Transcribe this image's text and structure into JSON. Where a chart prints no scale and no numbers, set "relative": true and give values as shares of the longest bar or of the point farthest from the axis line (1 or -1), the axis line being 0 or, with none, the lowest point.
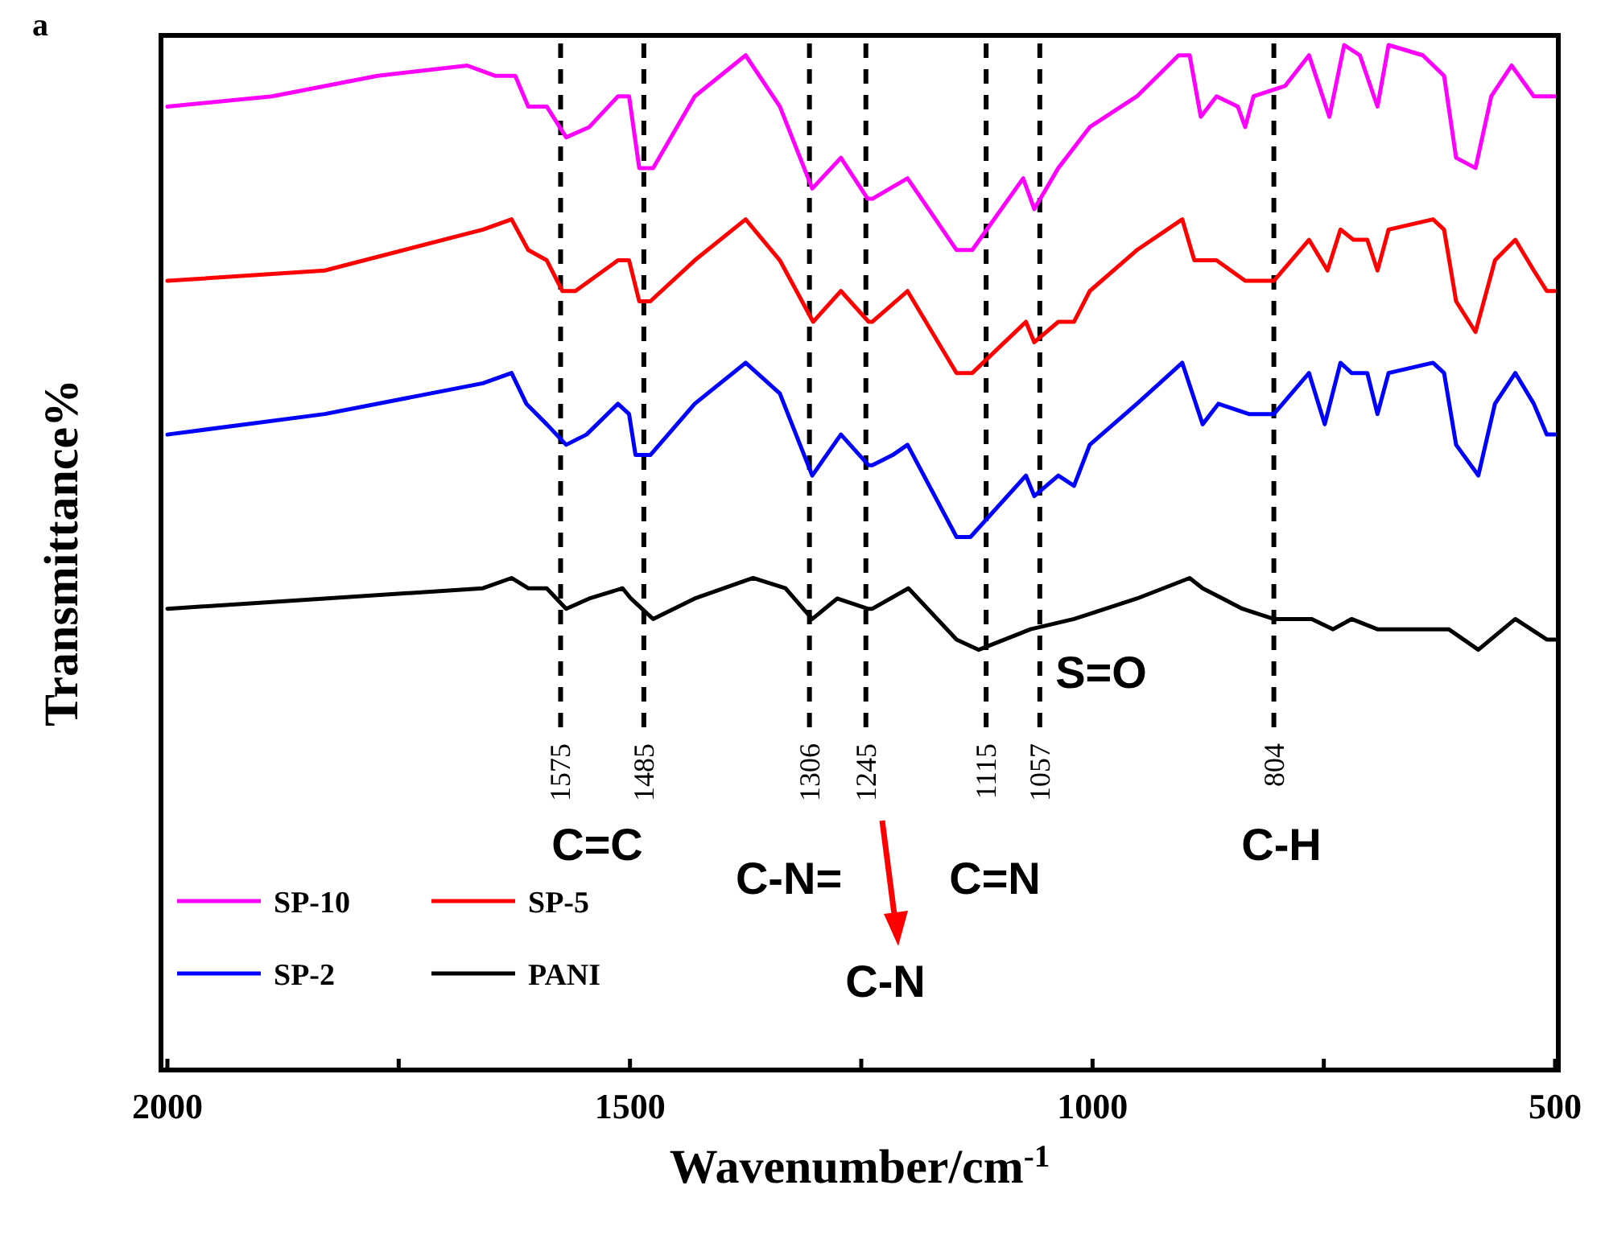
{
  "chart_data": {
    "type": "line",
    "title": "a",
    "xlabel": "Wavenumber/cm$^{-1}$",
    "ylabel": "Transmittance%",
    "relative": true,
    "xlim": [
      2000,
      500
    ],
    "xticks": [
      2000,
      {
        "value": 1750,
        "label": null
      },
      1500,
      {
        "value": 1250,
        "label": null
      },
      1000,
      {
        "value": 750,
        "label": null
      },
      500
    ],
    "legend": "bottom left",
    "grid": false,
    "line_style": "solid",
    "series": [
      {
        "name": "SP-10",
        "color": "#ff00ff",
        "x": [
          2000,
          1887,
          1773,
          1676,
          1646,
          1624,
          1610,
          1590,
          1569,
          1544,
          1513,
          1501,
          1490,
          1475,
          1430,
          1375,
          1338,
          1303,
          1272,
          1243,
          1238,
          1200,
          1147,
          1130,
          1075,
          1063,
          1037,
          1003,
          952,
          907,
          895,
          883,
          866,
          843,
          835,
          826,
          792,
          766,
          744,
          728,
          711,
          692,
          680,
          643,
          620,
          607,
          586,
          569,
          547,
          523,
          509,
          500
        ],
        "values": [
          0.94,
          0.95,
          0.97,
          0.98,
          0.97,
          0.97,
          0.94,
          0.94,
          0.91,
          0.92,
          0.95,
          0.95,
          0.88,
          0.88,
          0.95,
          0.99,
          0.94,
          0.86,
          0.89,
          0.85,
          0.85,
          0.87,
          0.8,
          0.8,
          0.87,
          0.84,
          0.88,
          0.92,
          0.95,
          0.99,
          0.99,
          0.93,
          0.95,
          0.94,
          0.92,
          0.95,
          0.96,
          0.99,
          0.93,
          1.0,
          0.99,
          0.94,
          1.0,
          0.99,
          0.97,
          0.89,
          0.88,
          0.95,
          0.98,
          0.95,
          0.95,
          0.95
        ]
      },
      {
        "name": "SP-5",
        "color": "#ff0000",
        "x": [
          2000,
          1830,
          1659,
          1628,
          1610,
          1590,
          1573,
          1559,
          1513,
          1501,
          1490,
          1478,
          1430,
          1375,
          1338,
          1302,
          1272,
          1242,
          1238,
          1200,
          1147,
          1130,
          1072,
          1063,
          1037,
          1020,
          1003,
          952,
          903,
          890,
          866,
          835,
          804,
          766,
          746,
          732,
          718,
          703,
          692,
          680,
          632,
          620,
          607,
          586,
          565,
          543,
          523,
          509,
          500
        ],
        "values": [
          0.77,
          0.78,
          0.82,
          0.83,
          0.8,
          0.79,
          0.76,
          0.76,
          0.79,
          0.79,
          0.75,
          0.75,
          0.79,
          0.83,
          0.79,
          0.73,
          0.76,
          0.73,
          0.73,
          0.76,
          0.68,
          0.68,
          0.73,
          0.71,
          0.73,
          0.73,
          0.76,
          0.8,
          0.83,
          0.79,
          0.79,
          0.77,
          0.77,
          0.81,
          0.78,
          0.82,
          0.81,
          0.81,
          0.78,
          0.82,
          0.83,
          0.82,
          0.75,
          0.72,
          0.79,
          0.81,
          0.78,
          0.76,
          0.76
        ]
      },
      {
        "name": "SP-2",
        "color": "#0000ff",
        "x": [
          2000,
          1830,
          1659,
          1628,
          1612,
          1590,
          1569,
          1547,
          1513,
          1501,
          1494,
          1478,
          1430,
          1375,
          1338,
          1303,
          1272,
          1242,
          1238,
          1216,
          1200,
          1147,
          1132,
          1072,
          1063,
          1037,
          1020,
          1003,
          952,
          903,
          881,
          864,
          831,
          804,
          766,
          749,
          732,
          720,
          703,
          692,
          680,
          632,
          620,
          607,
          583,
          565,
          543,
          523,
          509,
          500
        ],
        "values": [
          0.62,
          0.64,
          0.67,
          0.68,
          0.65,
          0.63,
          0.61,
          0.62,
          0.65,
          0.64,
          0.6,
          0.6,
          0.65,
          0.69,
          0.66,
          0.58,
          0.62,
          0.59,
          0.59,
          0.6,
          0.61,
          0.52,
          0.52,
          0.58,
          0.56,
          0.58,
          0.57,
          0.61,
          0.65,
          0.69,
          0.63,
          0.65,
          0.64,
          0.64,
          0.68,
          0.63,
          0.69,
          0.68,
          0.68,
          0.64,
          0.68,
          0.69,
          0.68,
          0.61,
          0.58,
          0.65,
          0.68,
          0.65,
          0.62,
          0.62
        ]
      },
      {
        "name": "PANI",
        "color": "#000000",
        "x": [
          2000,
          1830,
          1659,
          1628,
          1610,
          1590,
          1569,
          1544,
          1508,
          1499,
          1475,
          1430,
          1367,
          1332,
          1303,
          1276,
          1243,
          1238,
          1199,
          1147,
          1123,
          1067,
          1020,
          952,
          895,
          881,
          838,
          804,
          763,
          740,
          720,
          692,
          615,
          583,
          543,
          509,
          500
        ],
        "values": [
          0.45,
          0.46,
          0.47,
          0.48,
          0.47,
          0.47,
          0.45,
          0.46,
          0.47,
          0.46,
          0.44,
          0.46,
          0.48,
          0.47,
          0.44,
          0.46,
          0.45,
          0.45,
          0.47,
          0.42,
          0.41,
          0.43,
          0.44,
          0.46,
          0.48,
          0.47,
          0.45,
          0.44,
          0.44,
          0.43,
          0.44,
          0.43,
          0.43,
          0.41,
          0.44,
          0.42,
          0.42
        ]
      }
    ],
    "ref_lines": [
      {
        "axis": "x",
        "value": 1575,
        "label": "1575",
        "color": "#000000",
        "line_style": "dashed"
      },
      {
        "axis": "x",
        "value": 1485,
        "label": "1485",
        "color": "#000000",
        "line_style": "dashed"
      },
      {
        "axis": "x",
        "value": 1306,
        "label": "1306",
        "color": "#000000",
        "line_style": "dashed"
      },
      {
        "axis": "x",
        "value": 1245,
        "label": "1245",
        "color": "#000000",
        "line_style": "dashed"
      },
      {
        "axis": "x",
        "value": 1115,
        "label": "1115",
        "color": "#000000",
        "line_style": "dashed"
      },
      {
        "axis": "x",
        "value": 1057,
        "label": "1057",
        "color": "#000000",
        "line_style": "dashed"
      },
      {
        "axis": "x",
        "value": 804,
        "label": "804",
        "color": "#000000",
        "line_style": "dashed"
      }
    ],
    "annotations": [
      "S=O",
      "C=C",
      "C-N=",
      "C=N",
      "C-H",
      "C-N"
    ]
  }
}
